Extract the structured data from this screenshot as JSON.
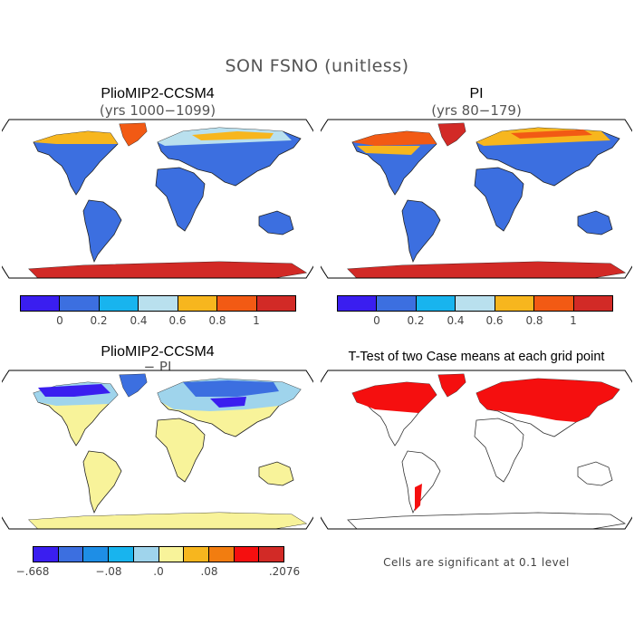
{
  "figure": {
    "title": "SON FSNO (unitless)"
  },
  "panels": {
    "top_left": {
      "title": "PlioMIP2-CCSM4",
      "subtitle": "(yrs 1000−1099)"
    },
    "top_right": {
      "title": "PI",
      "subtitle": "(yrs 80−179)"
    },
    "bottom_left": {
      "title": "PlioMIP2-CCSM4",
      "subtitle": "− PI"
    },
    "bottom_right": {
      "title": "T-Test of two Case means at each grid point",
      "note": "Cells are significant at 0.1 level"
    }
  },
  "colorbars": {
    "abs": {
      "colors": [
        "#3a1ef0",
        "#3c6fe0",
        "#18b4ee",
        "#b9e0ee",
        "#f7b61e",
        "#f25a14",
        "#d22a26"
      ],
      "labels": [
        "0",
        "0.2",
        "0.4",
        "0.6",
        "0.8",
        "1"
      ]
    },
    "diff": {
      "colors": [
        "#3a1ef0",
        "#3c6fe0",
        "#1e8ee6",
        "#18b4ee",
        "#9fd4ec",
        "#f8f39a",
        "#f7b61e",
        "#f27d10",
        "#f50f0f",
        "#d22a26"
      ],
      "labels": [
        "−.668",
        "−.08",
        ".0",
        ".08",
        ".2076"
      ]
    }
  },
  "map_colors": {
    "land_default": "#3c6fe0",
    "diff_default": "#f8f39a",
    "significant": "#f50f0f"
  }
}
